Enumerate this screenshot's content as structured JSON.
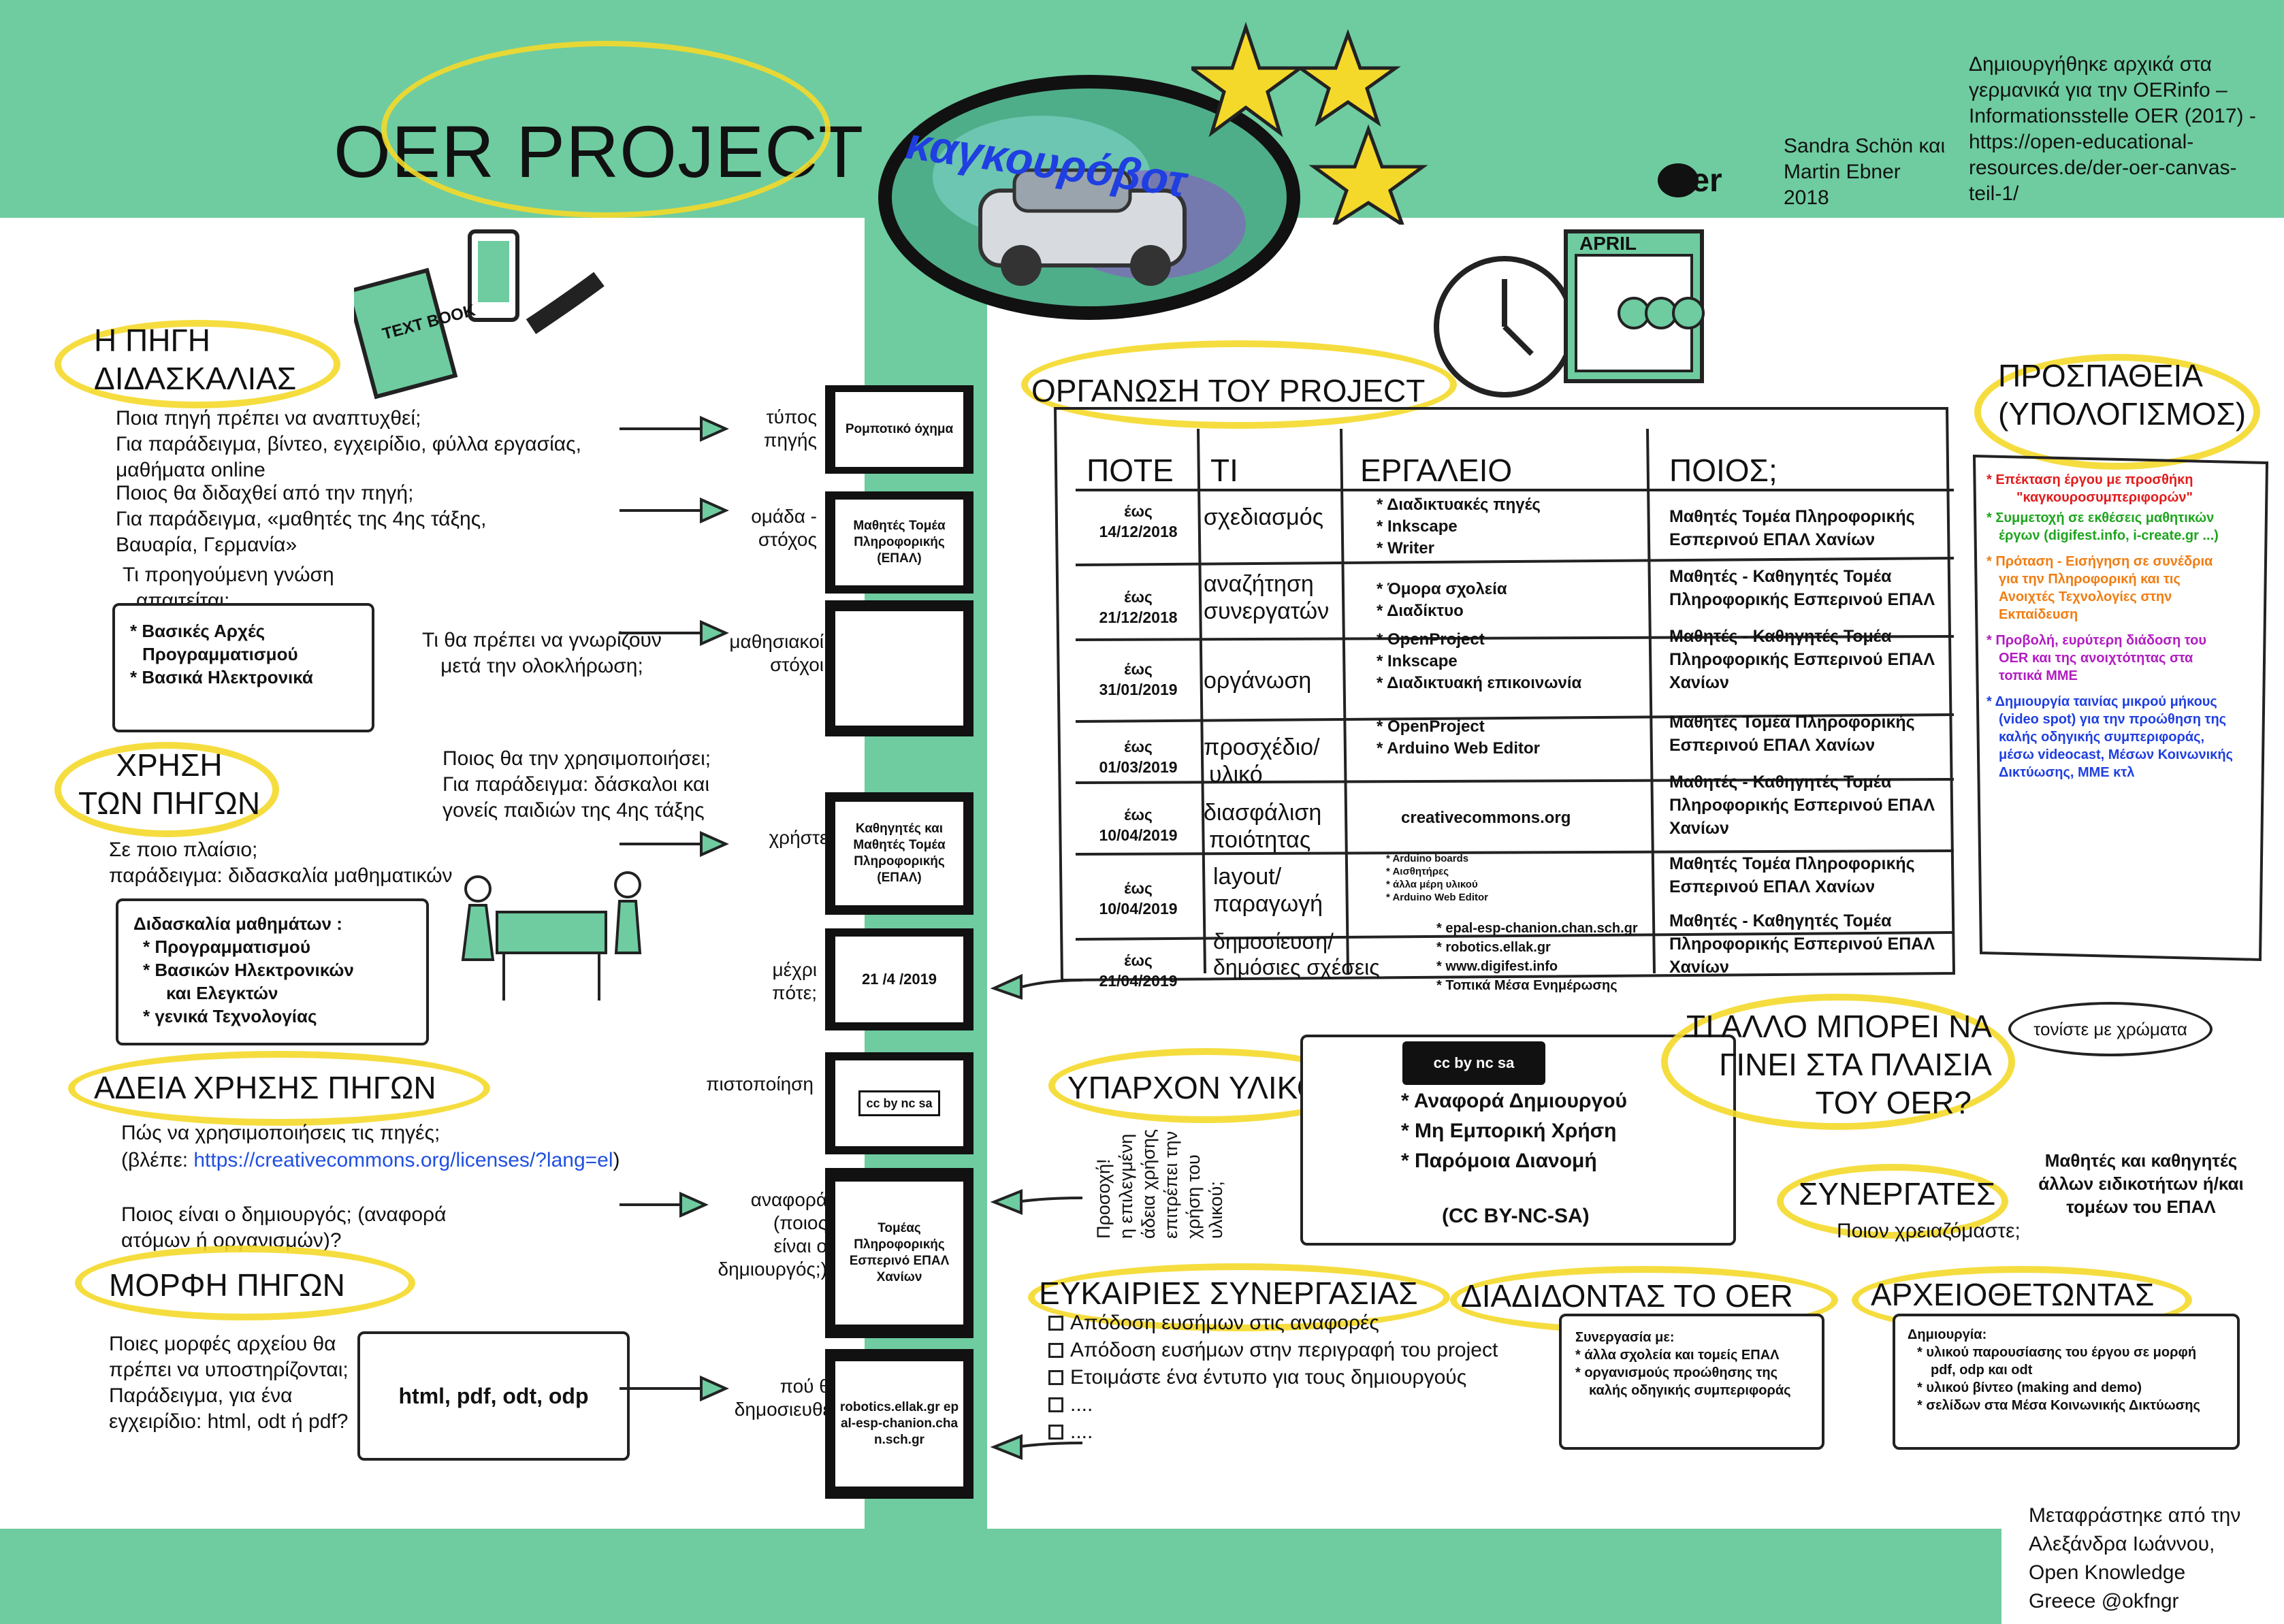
{
  "header": {
    "title": "OER PROJECT",
    "logo_text": "καγκουρόβοτ",
    "oer_logo": "oer",
    "authors": [
      "Sandra Schön και",
      "Martin Ebner",
      "2018"
    ],
    "origin_note": [
      "Δημιουργήθηκε αρχικά στα",
      "γερμανικά για την OERinfo –",
      "Informationsstelle OER (2017) -",
      "https://open-educational-",
      "resources.de/der-oer-canvas-",
      "teil-1/"
    ]
  },
  "source": {
    "heading": [
      "Η ΠΗΓΗ",
      "ΔΙΔΑΣΚΑΛΙΑΣ"
    ],
    "q1": [
      "Ποια πηγή πρέπει να αναπτυχθεί;",
      "Για παράδειγμα, βίντεο, εγχειρίδιο, φύλλα εργασίας,",
      "μαθήματα online"
    ],
    "q2": [
      "Ποιος θα διδαχθεί από την πηγή;",
      "Για παράδειγμα, «μαθητές της 4ης τάξης,",
      "Βαυαρία, Γερμανία»"
    ],
    "q3": [
      "Τι προηγούμενη γνώση",
      "απαιτείται;"
    ],
    "prior_box": [
      "* Βασικές Αρχές",
      "Προγραμματισμού",
      "* Βασικά Ηλεκτρονικά"
    ],
    "q4": [
      "Τι θα πρέπει να γνωρίζουν",
      "μετά την ολοκλήρωση;"
    ],
    "book_label": "TEXT BOOK"
  },
  "usage": {
    "heading": [
      "ΧΡΗΣΗ",
      "ΤΩΝ ΠΗΓΩΝ"
    ],
    "who_q": [
      "Ποιος θα την χρησιμοποιήσει;",
      "Για παράδειγμα: δάσκαλοι και",
      "γονείς παιδιών της 4ης τάξης"
    ],
    "context_q": [
      "Σε ποιο πλαίσιο;",
      "παράδειγμα: διδασκαλία μαθηματικών"
    ],
    "context_box": [
      "Διδασκαλία μαθημάτων :",
      "* Προγραμματισμού",
      "* Βασικών Ηλεκτρονικών",
      "και Ελεγκτών",
      "* γενικά Τεχνολογίας"
    ]
  },
  "license": {
    "heading": "ΑΔΕΙΑ ΧΡΗΣΗΣ ΠΗΓΩΝ",
    "q1": "Πώς να χρησιμοποιήσεις τις πηγές;",
    "q1b_prefix": "(βλέπε: ",
    "q1b_link": "https://creativecommons.org/licenses/?lang=el",
    "q1b_suffix": ")",
    "q2": [
      "Ποιος είναι ο δημιουργός; (αναφορά",
      "ατόμων ή οργανισμών)?"
    ]
  },
  "format": {
    "heading": "ΜΟΡΦΗ ΠΗΓΩΝ",
    "q": [
      "Ποιες μορφές αρχείου θα",
      "πρέπει να υποστηρίζονται;",
      "Παράδειγμα, για ένα",
      "εγχειρίδιο: html, odt ή pdf?"
    ],
    "box": "html, pdf, odt, odp"
  },
  "cards": [
    {
      "label": [
        "τύπος",
        "πηγής"
      ],
      "value": "Ρομποτικό όχημα"
    },
    {
      "label": [
        "ομάδα -",
        "στόχος"
      ],
      "value": "Μαθητές Τομέα Πληροφορικής (ΕΠΑΛ)"
    },
    {
      "label": [
        "μαθησιακοί",
        "στόχοι"
      ],
      "value": ""
    },
    {
      "label": [
        "χρήστες"
      ],
      "value": "Καθηγητές και Μαθητές Τομέα Πληροφορικής (ΕΠΑΛ)"
    },
    {
      "label": [
        "μέχρι",
        "πότε;"
      ],
      "value": "21 /4 /2019"
    },
    {
      "label": [
        "πιστοποίηση"
      ],
      "value": "cc by nc sa"
    },
    {
      "label": [
        "αναφορά",
        "(ποιος",
        "είναι ο",
        "δημιουργός;)"
      ],
      "value": "Τομέας Πληροφορικής Εσπερινό ΕΠΑΛ Χανίων"
    },
    {
      "label": [
        "πού θα",
        "δημοσιευθεί;"
      ],
      "value": "robotics.ellak.gr epal-esp-chanion.chan.sch.gr"
    }
  ],
  "organisation": {
    "heading": "ΟΡΓΑΝΩΣΗ ΤΟΥ PROJECT",
    "clock_label": "APRIL",
    "columns": [
      "ΠΟΤΕ",
      "ΤΙ",
      "ΕΡΓΑΛΕΙΟ",
      "ΠΟΙΟΣ;"
    ],
    "rows": [
      {
        "date": [
          "έως",
          "14/12/2018"
        ],
        "what": [
          "σχεδιασμός"
        ],
        "tools": [
          "* Διαδικτυακές πηγές",
          "* Inkscape",
          "* Writer"
        ],
        "who": [
          "Μαθητές Τομέα Πληροφορικής",
          "Εσπερινού ΕΠΑΛ Χανίων"
        ]
      },
      {
        "date": [
          "έως",
          "21/12/2018"
        ],
        "what": [
          "αναζήτηση",
          "συνεργατών"
        ],
        "tools": [
          "* Όμορα σχολεία",
          "* Διαδίκτυο"
        ],
        "who": [
          "Μαθητές - Καθηγητές Τομέα",
          "Πληροφορικής Εσπερινού ΕΠΑΛ"
        ]
      },
      {
        "date": [
          "έως",
          "31/01/2019"
        ],
        "what": [
          "οργάνωση"
        ],
        "tools": [
          "* OpenProject",
          "* Inkscape",
          "* Διαδικτυακή επικοινωνία"
        ],
        "who": [
          "Μαθητές - Καθηγητές Τομέα",
          "Πληροφορικής Εσπερινού ΕΠΑΛ",
          "Χανίων"
        ]
      },
      {
        "date": [
          "έως",
          "01/03/2019"
        ],
        "what": [
          "προσχέδιο/",
          "υλικό"
        ],
        "tools": [
          "* OpenProject",
          "* Arduino Web Editor"
        ],
        "who": [
          "Μαθητές Τομέα Πληροφορικής",
          "Εσπερινού ΕΠΑΛ Χανίων"
        ]
      },
      {
        "date": [
          "έως",
          "10/04/2019"
        ],
        "what": [
          "διασφάλιση",
          "ποιότητας"
        ],
        "tools": [
          "creativecommons.org"
        ],
        "who": [
          "Μαθητές - Καθηγητές Τομέα",
          "Πληροφορικής Εσπερινού ΕΠΑΛ",
          "Χανίων"
        ]
      },
      {
        "date": [
          "έως",
          "10/04/2019"
        ],
        "what": [
          "layout/",
          "παραγωγή"
        ],
        "tools": [
          "* Arduino boards",
          "* Αισθητήρες",
          "* άλλα μέρη υλικού",
          "* Arduino Web Editor"
        ],
        "who": [
          "Μαθητές Τομέα Πληροφορικής",
          "Εσπερινού ΕΠΑΛ Χανίων"
        ]
      },
      {
        "date": [
          "έως",
          "21/04/2019"
        ],
        "what": [
          "δημοσίευση/",
          "δημόσιες σχέσεις"
        ],
        "tools": [
          "* epal-esp-chanion.chan.sch.gr",
          "* robotics.ellak.gr",
          "* www.digifest.info",
          "* Τοπικά Μέσα Ενημέρωσης"
        ],
        "who": [
          "Μαθητές - Καθηγητές Τομέα",
          "Πληροφορικής Εσπερινού ΕΠΑΛ",
          "Χανίων"
        ]
      }
    ]
  },
  "effort": {
    "heading": [
      "ΠΡΟΣΠΑΘΕΙΑ",
      "(ΥΠΟΛΟΓΙΣΜΟΣ)"
    ],
    "red": [
      "* Επέκταση έργου με προσθήκη",
      "\"καγκουροσυμπεριφορών\""
    ],
    "green": [
      "* Συμμετοχή σε εκθέσεις μαθητικών",
      "έργων (digifest.info, i-create.gr ...)"
    ],
    "orange": [
      "* Πρόταση - Εισήγηση σε συνέδρια",
      "για την Πληροφορική και τις",
      "Ανοιχτές Τεχνολογίες στην",
      "Εκπαίδευση"
    ],
    "purple": [
      "* Προβολή, ευρύτερη διάδοση του",
      "OER και της ανοιχτότητας στα",
      "τοπικά ΜΜΕ"
    ],
    "blue": [
      "* Δημιουργία ταινίας μικρού μήκους",
      "(video spot) για την προώθηση της",
      "καλής οδηγικής συμπεριφοράς,",
      "μέσω videocast, Μέσων Κοινωνικής",
      "Δικτύωσης, ΜΜΕ κτλ"
    ],
    "tip": "τονίστε με χρώματα"
  },
  "existing": {
    "heading": "ΥΠΑΡΧΟΝ ΥΛΙΚΟ",
    "rotated_note": [
      "Προσοχή!",
      "η επιλεγμένη",
      "άδεια χρήσης",
      "επιτρέπει την",
      "χρήση του",
      "υλικού;"
    ],
    "cc_badge": "cc by nc sa",
    "items": [
      "* Αναφορά Δημιουργού",
      "* Μη Εμπορική Χρήση",
      "* Παρόμοια Διανομή"
    ],
    "license_code": "(CC BY-NC-SA)"
  },
  "more": {
    "heading": [
      "ΤΙ ΑΛΛΟ ΜΠΟΡΕΙ ΝΑ",
      "ΓΙΝΕΙ ΣΤΑ ΠΛΑΙΣΙΑ",
      "ΤΟΥ OER?"
    ]
  },
  "partners": {
    "heading": "ΣΥΝΕΡΓΑΤΕΣ",
    "q": "Ποιον χρειαζόμαστε;",
    "answer": [
      "Μαθητές και καθηγητές",
      "άλλων ειδικοτήτων ή/και",
      "τομέων του ΕΠΑΛ"
    ]
  },
  "collab": {
    "heading": "ΕΥΚΑΙΡΙΕΣ ΣΥΝΕΡΓΑΣΙΑΣ",
    "checklist": [
      "Απόδοση ευσήμων στις αναφορές",
      "Απόδοση ευσήμων στην περιγραφή του project",
      "Ετοιμάστε ένα έντυπο για τους δημιουργούς",
      "....",
      "...."
    ]
  },
  "spread": {
    "heading": "ΔΙΑΔΙΔΟΝΤΑΣ ΤΟ OER",
    "box": [
      "Συνεργασία με:",
      "* άλλα σχολεία και τομείς ΕΠΑΛ",
      "* οργανισμούς προώθησης της",
      "καλής οδηγικής συμπεριφοράς"
    ]
  },
  "archive": {
    "heading": "ΑΡΧΕΙΟΘΕΤΩΝΤΑΣ",
    "box": [
      "Δημιουργία:",
      "* υλικού παρουσίασης του έργου σε μορφή",
      "pdf, odp και odt",
      "* υλικού βίντεο (making and demo)",
      "* σελίδων στα Μέσα Κοινωνικής Δικτύωσης"
    ]
  },
  "footer": {
    "translation": [
      "Μεταφράστηκε από την",
      "Αλεξάνδρα Ιωάννου,",
      "Open Knowledge",
      "Greece @okfngr"
    ]
  },
  "colors": {
    "green_band": "#6ecca0",
    "highlight": "#f4d92a",
    "link": "#1f4fe0"
  }
}
